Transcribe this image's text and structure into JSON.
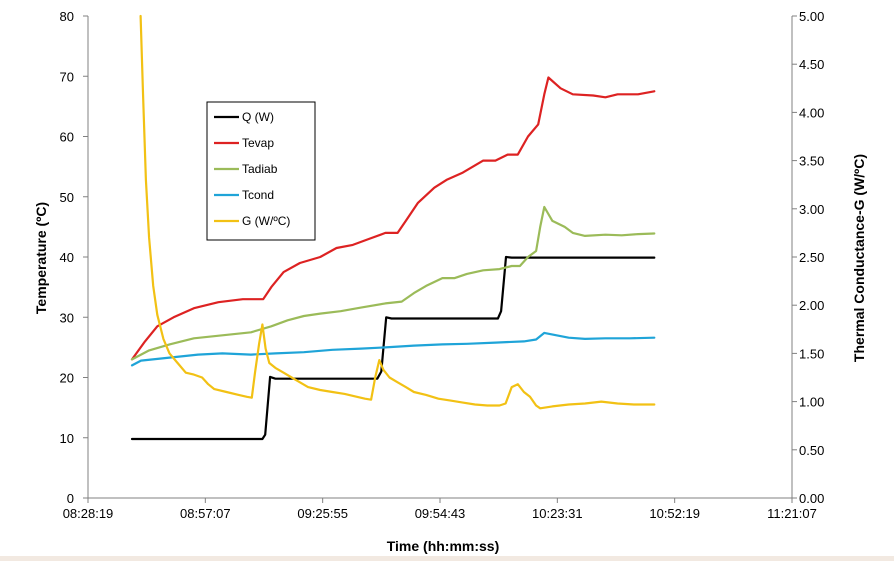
{
  "chart_data": {
    "type": "line",
    "xlabel": "Time (hh:mm:ss)",
    "ylabel": "Temperature (ºC)",
    "y2label": "Thermal Conductance-G (W/ºC)",
    "ylim": [
      0,
      80
    ],
    "y2lim": [
      0,
      5
    ],
    "x_tick_labels": [
      "08:28:19",
      "08:57:07",
      "09:25:55",
      "09:54:43",
      "10:23:31",
      "10:52:19",
      "11:21:07"
    ],
    "x_tick_minutes": [
      0,
      28.8,
      57.6,
      86.4,
      115.2,
      144,
      172.8
    ],
    "y_ticks": [
      "0",
      "10",
      "20",
      "30",
      "40",
      "50",
      "60",
      "70",
      "80"
    ],
    "y2_ticks": [
      "0.00",
      "0.50",
      "1.00",
      "1.50",
      "2.00",
      "2.50",
      "3.00",
      "3.50",
      "4.00",
      "4.50",
      "5.00"
    ],
    "legend_position": "upper-left",
    "grid": false,
    "series": [
      {
        "name": "Q (W)",
        "color": "#000000",
        "axis": "left",
        "points": [
          [
            10.8,
            9.8
          ],
          [
            42.8,
            9.8
          ],
          [
            43.5,
            10.5
          ],
          [
            44.7,
            20.1
          ],
          [
            46,
            19.8
          ],
          [
            71,
            19.8
          ],
          [
            72,
            21
          ],
          [
            73.2,
            30
          ],
          [
            74.5,
            29.8
          ],
          [
            100.6,
            29.8
          ],
          [
            101.4,
            31
          ],
          [
            102.6,
            40
          ],
          [
            104,
            39.9
          ],
          [
            139,
            39.9
          ]
        ]
      },
      {
        "name": "Tevap",
        "color": "#dd2222",
        "axis": "left",
        "points": [
          [
            10.8,
            23
          ],
          [
            14,
            26
          ],
          [
            17,
            28.5
          ],
          [
            21,
            30
          ],
          [
            26,
            31.5
          ],
          [
            32,
            32.5
          ],
          [
            38,
            33
          ],
          [
            43,
            33
          ],
          [
            45,
            35
          ],
          [
            48,
            37.5
          ],
          [
            52,
            39
          ],
          [
            57,
            40
          ],
          [
            61,
            41.5
          ],
          [
            65,
            42
          ],
          [
            69,
            43
          ],
          [
            73,
            44
          ],
          [
            76,
            44
          ],
          [
            78,
            46
          ],
          [
            81,
            49
          ],
          [
            85,
            51.5
          ],
          [
            88,
            52.8
          ],
          [
            92,
            54
          ],
          [
            97,
            56
          ],
          [
            100,
            56
          ],
          [
            103,
            57
          ],
          [
            105.5,
            57
          ],
          [
            108,
            60
          ],
          [
            110.5,
            62
          ],
          [
            112,
            67
          ],
          [
            113,
            69.8
          ],
          [
            116,
            68
          ],
          [
            119,
            67
          ],
          [
            124,
            66.8
          ],
          [
            127,
            66.5
          ],
          [
            130,
            67
          ],
          [
            135,
            67
          ],
          [
            139,
            67.5
          ]
        ]
      },
      {
        "name": "Tadiab",
        "color": "#9bbb59",
        "axis": "left",
        "points": [
          [
            10.8,
            23
          ],
          [
            15,
            24.5
          ],
          [
            20,
            25.5
          ],
          [
            26,
            26.5
          ],
          [
            33,
            27
          ],
          [
            40,
            27.5
          ],
          [
            45,
            28.5
          ],
          [
            49,
            29.5
          ],
          [
            53,
            30.2
          ],
          [
            57,
            30.6
          ],
          [
            62,
            31
          ],
          [
            67,
            31.6
          ],
          [
            73,
            32.3
          ],
          [
            77,
            32.6
          ],
          [
            80,
            34
          ],
          [
            83,
            35.2
          ],
          [
            87,
            36.5
          ],
          [
            90,
            36.5
          ],
          [
            93,
            37.2
          ],
          [
            97,
            37.8
          ],
          [
            101,
            38
          ],
          [
            104,
            38.5
          ],
          [
            106,
            38.5
          ],
          [
            108,
            40
          ],
          [
            110,
            41
          ],
          [
            111,
            45
          ],
          [
            112,
            48.3
          ],
          [
            114,
            46
          ],
          [
            117,
            45
          ],
          [
            119,
            44
          ],
          [
            122,
            43.5
          ],
          [
            127,
            43.7
          ],
          [
            131,
            43.6
          ],
          [
            135,
            43.8
          ],
          [
            139,
            43.9
          ]
        ]
      },
      {
        "name": "Tcond",
        "color": "#1fa4d8",
        "axis": "left",
        "points": [
          [
            10.8,
            22
          ],
          [
            13,
            22.8
          ],
          [
            20,
            23.3
          ],
          [
            27,
            23.8
          ],
          [
            33,
            24
          ],
          [
            40,
            23.8
          ],
          [
            46,
            24
          ],
          [
            53,
            24.2
          ],
          [
            60,
            24.6
          ],
          [
            67,
            24.8
          ],
          [
            73,
            25
          ],
          [
            80,
            25.3
          ],
          [
            87,
            25.5
          ],
          [
            93,
            25.6
          ],
          [
            100,
            25.8
          ],
          [
            107,
            26
          ],
          [
            110,
            26.3
          ],
          [
            112,
            27.4
          ],
          [
            115,
            27
          ],
          [
            118,
            26.6
          ],
          [
            122,
            26.4
          ],
          [
            127,
            26.5
          ],
          [
            133,
            26.5
          ],
          [
            139,
            26.6
          ]
        ]
      },
      {
        "name": "G (W/ºC)",
        "color": "#f2c114",
        "axis": "right",
        "points": [
          [
            12.9,
            5
          ],
          [
            13.5,
            4.2
          ],
          [
            14.2,
            3.3
          ],
          [
            15,
            2.7
          ],
          [
            16,
            2.2
          ],
          [
            17,
            1.9
          ],
          [
            18.5,
            1.65
          ],
          [
            20,
            1.5
          ],
          [
            22,
            1.4
          ],
          [
            24,
            1.3
          ],
          [
            26,
            1.28
          ],
          [
            28,
            1.25
          ],
          [
            29.5,
            1.18
          ],
          [
            31,
            1.13
          ],
          [
            34,
            1.1
          ],
          [
            37,
            1.07
          ],
          [
            39,
            1.05
          ],
          [
            40.2,
            1.04
          ],
          [
            41,
            1.3
          ],
          [
            42,
            1.6
          ],
          [
            42.8,
            1.8
          ],
          [
            43.6,
            1.55
          ],
          [
            44.5,
            1.4
          ],
          [
            46,
            1.35
          ],
          [
            48,
            1.3
          ],
          [
            50,
            1.25
          ],
          [
            52,
            1.2
          ],
          [
            54,
            1.15
          ],
          [
            57,
            1.12
          ],
          [
            60,
            1.1
          ],
          [
            63,
            1.08
          ],
          [
            66,
            1.05
          ],
          [
            68,
            1.03
          ],
          [
            69.5,
            1.02
          ],
          [
            70.5,
            1.25
          ],
          [
            71.5,
            1.43
          ],
          [
            72.5,
            1.33
          ],
          [
            74,
            1.25
          ],
          [
            76,
            1.2
          ],
          [
            78,
            1.15
          ],
          [
            80,
            1.1
          ],
          [
            83,
            1.07
          ],
          [
            86,
            1.03
          ],
          [
            89,
            1.01
          ],
          [
            92,
            0.99
          ],
          [
            95,
            0.97
          ],
          [
            98,
            0.96
          ],
          [
            101,
            0.96
          ],
          [
            102.5,
            0.98
          ],
          [
            104,
            1.15
          ],
          [
            105.5,
            1.18
          ],
          [
            107,
            1.1
          ],
          [
            108.5,
            1.05
          ],
          [
            110,
            0.96
          ],
          [
            111,
            0.93
          ],
          [
            114,
            0.95
          ],
          [
            118,
            0.97
          ],
          [
            122,
            0.98
          ],
          [
            126,
            1.0
          ],
          [
            130,
            0.98
          ],
          [
            134,
            0.97
          ],
          [
            139,
            0.97
          ]
        ]
      }
    ]
  }
}
